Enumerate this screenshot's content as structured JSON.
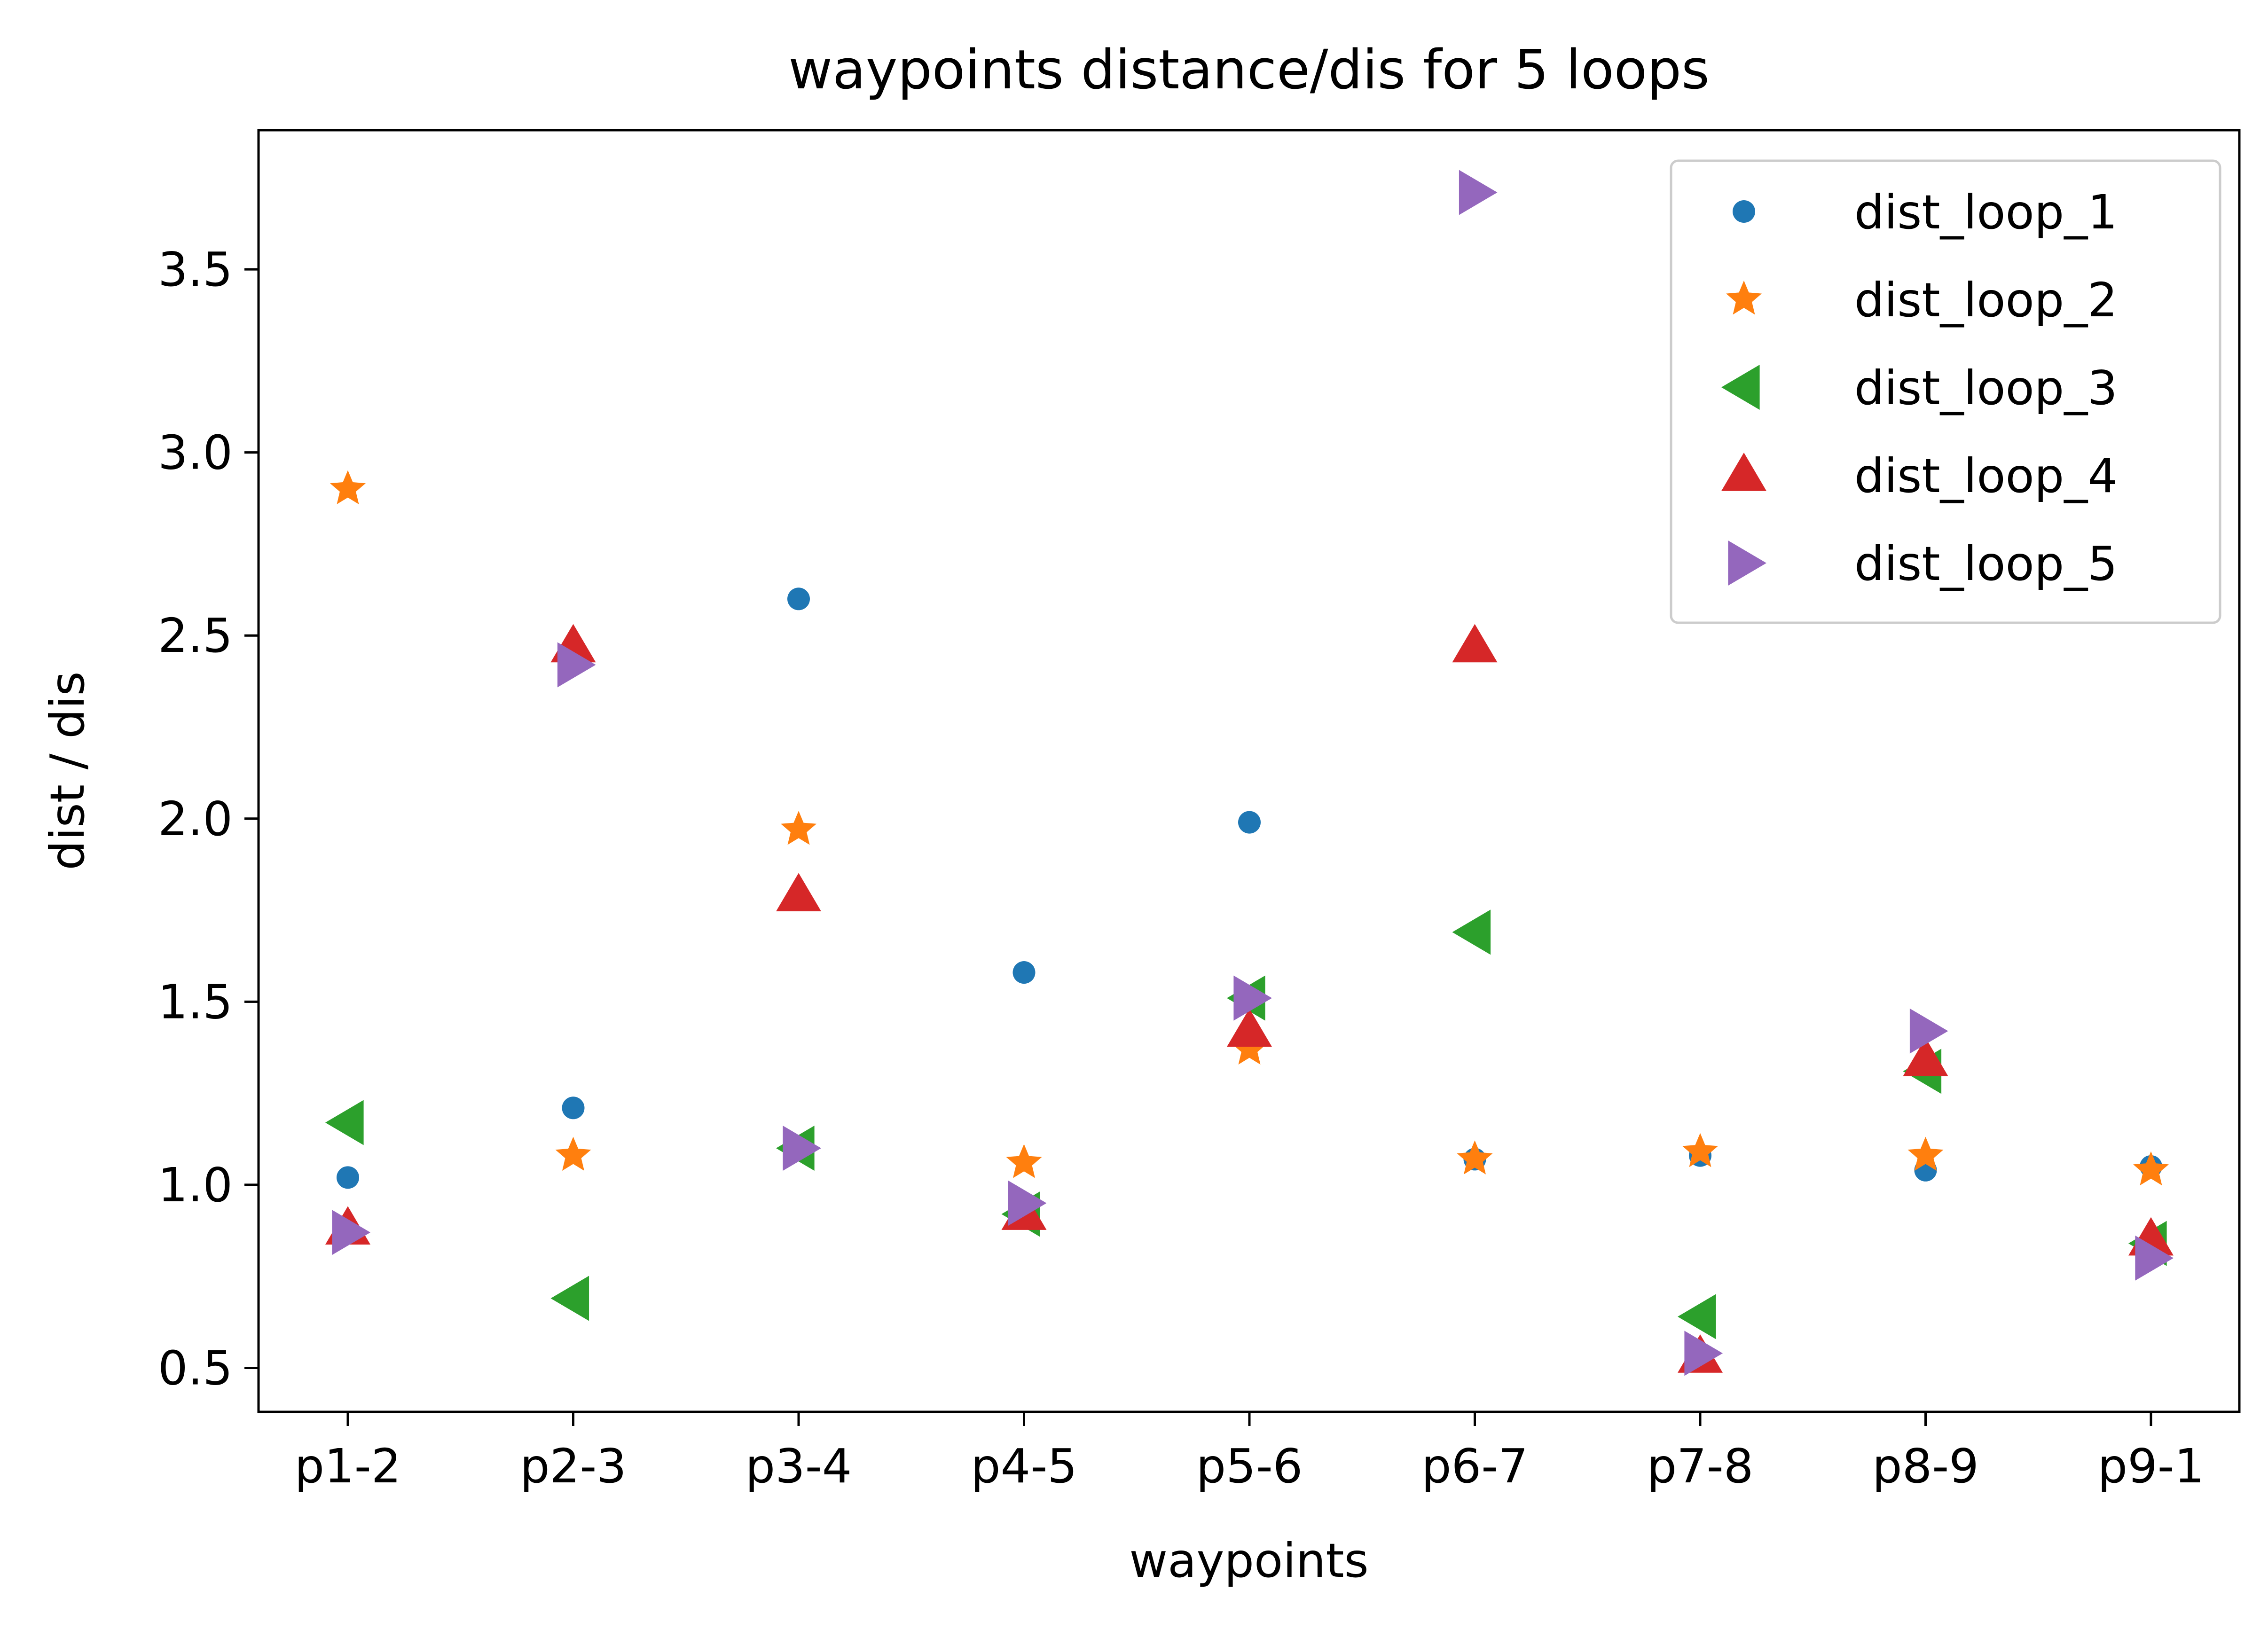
{
  "chart_data": {
    "type": "scatter",
    "title": "waypoints distance/dis for 5 loops",
    "xlabel": "waypoints",
    "ylabel": "dist / dis",
    "categories": [
      "p1-2",
      "p2-3",
      "p3-4",
      "p4-5",
      "p5-6",
      "p6-7",
      "p7-8",
      "p8-9",
      "p9-1"
    ],
    "ylim": [
      0.38,
      3.88
    ],
    "yticks": [
      0.5,
      1.0,
      1.5,
      2.0,
      2.5,
      3.0,
      3.5
    ],
    "ytick_labels": [
      "0.5",
      "1.0",
      "1.5",
      "2.0",
      "2.5",
      "3.0",
      "3.5"
    ],
    "grid": false,
    "legend_position": "top-right",
    "series": [
      {
        "name": "dist_loop_1",
        "marker": "circle",
        "color": "#1f77b4",
        "values": [
          1.02,
          1.21,
          2.6,
          1.58,
          1.99,
          1.07,
          1.08,
          1.04,
          1.05
        ]
      },
      {
        "name": "dist_loop_2",
        "marker": "star",
        "color": "#ff7f0e",
        "values": [
          2.9,
          1.08,
          1.97,
          1.06,
          1.37,
          1.07,
          1.09,
          1.08,
          1.04
        ]
      },
      {
        "name": "dist_loop_3",
        "marker": "triangle-left",
        "color": "#2ca02c",
        "values": [
          1.17,
          0.69,
          1.1,
          0.92,
          1.51,
          1.69,
          0.64,
          1.31,
          0.84
        ]
      },
      {
        "name": "dist_loop_4",
        "marker": "triangle-up",
        "color": "#d62728",
        "values": [
          0.88,
          2.47,
          1.79,
          0.92,
          1.42,
          2.47,
          0.53,
          1.34,
          0.85
        ]
      },
      {
        "name": "dist_loop_5",
        "marker": "triangle-right",
        "color": "#9467bd",
        "values": [
          0.87,
          2.42,
          1.1,
          0.95,
          1.51,
          3.71,
          0.54,
          1.42,
          0.8
        ]
      }
    ]
  }
}
